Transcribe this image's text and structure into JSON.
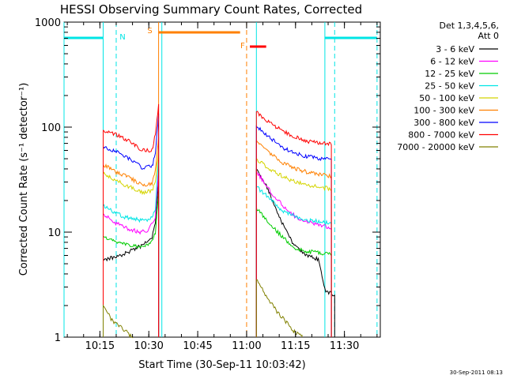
{
  "title": "HESSI Observing Summary Count Rates, Corrected",
  "footer_stamp": "30-Sep-2011 08:13",
  "chart_data": {
    "type": "line",
    "title": "HESSI Observing Summary Count Rates, Corrected",
    "xlabel": "Start Time (30-Sep-11 10:03:42)",
    "ylabel": "Corrected Count Rate (s⁻¹ detector⁻¹)",
    "y_scale": "log",
    "ylim": [
      1,
      1000
    ],
    "xlim": [
      "10:04",
      "11:41"
    ],
    "x_ticks": [
      "10:15",
      "10:30",
      "10:45",
      "11:00",
      "11:15",
      "11:30"
    ],
    "y_ticks": [
      "1",
      "10",
      "100",
      "1000"
    ],
    "legend_title": [
      "Det 1,3,4,5,6,",
      "Att 0"
    ],
    "legend_position": "right",
    "series": [
      {
        "name": "3 - 6 keV",
        "color": "#000000",
        "points": [
          [
            "10:16",
            5.5
          ],
          [
            "10:20",
            5.8
          ],
          [
            "10:24",
            6.5
          ],
          [
            "10:28",
            7.5
          ],
          [
            "10:31",
            9
          ],
          [
            "10:32",
            12
          ],
          [
            "10:33",
            30
          ],
          [
            "11:03",
            40
          ],
          [
            "11:06",
            28
          ],
          [
            "11:10",
            14
          ],
          [
            "11:14",
            8
          ],
          [
            "11:18",
            6
          ],
          [
            "11:22",
            5.5
          ],
          [
            "11:24",
            2.8
          ],
          [
            "11:27",
            2.5
          ]
        ]
      },
      {
        "name": "6 - 12 keV",
        "color": "#ff00ff",
        "points": [
          [
            "10:16",
            15
          ],
          [
            "10:19",
            12.5
          ],
          [
            "10:23",
            11
          ],
          [
            "10:27",
            10
          ],
          [
            "10:30",
            10.5
          ],
          [
            "10:32",
            14
          ],
          [
            "10:33",
            40
          ],
          [
            "11:03",
            38
          ],
          [
            "11:07",
            25
          ],
          [
            "11:11",
            18
          ],
          [
            "11:15",
            14
          ],
          [
            "11:19",
            12.5
          ],
          [
            "11:23",
            11.5
          ],
          [
            "11:26",
            11
          ]
        ]
      },
      {
        "name": "12 - 25 keV",
        "color": "#00cc00",
        "points": [
          [
            "10:16",
            9
          ],
          [
            "10:20",
            8
          ],
          [
            "10:24",
            7.5
          ],
          [
            "10:28",
            7.2
          ],
          [
            "10:31",
            8
          ],
          [
            "10:32",
            10
          ],
          [
            "10:33",
            25
          ],
          [
            "11:03",
            17
          ],
          [
            "11:07",
            12
          ],
          [
            "11:11",
            9
          ],
          [
            "11:15",
            7
          ],
          [
            "11:19",
            6.5
          ],
          [
            "11:23",
            6.3
          ],
          [
            "11:26",
            6.2
          ]
        ]
      },
      {
        "name": "25 - 50 keV",
        "color": "#00e5e5",
        "points": [
          [
            "10:16",
            18
          ],
          [
            "10:20",
            15
          ],
          [
            "10:24",
            13.5
          ],
          [
            "10:28",
            13
          ],
          [
            "10:31",
            13.5
          ],
          [
            "10:32",
            17
          ],
          [
            "10:33",
            50
          ],
          [
            "11:03",
            27
          ],
          [
            "11:07",
            21
          ],
          [
            "11:11",
            16
          ],
          [
            "11:15",
            14
          ],
          [
            "11:19",
            13
          ],
          [
            "11:23",
            12.5
          ],
          [
            "11:26",
            12
          ]
        ]
      },
      {
        "name": "50 - 100 keV",
        "color": "#d4d400",
        "points": [
          [
            "10:16",
            36
          ],
          [
            "10:20",
            31
          ],
          [
            "10:24",
            27
          ],
          [
            "10:28",
            24
          ],
          [
            "10:31",
            24.5
          ],
          [
            "10:32",
            30
          ],
          [
            "10:33",
            60
          ],
          [
            "11:03",
            50
          ],
          [
            "11:07",
            40
          ],
          [
            "11:11",
            34
          ],
          [
            "11:15",
            30
          ],
          [
            "11:19",
            28
          ],
          [
            "11:23",
            26.5
          ],
          [
            "11:26",
            26
          ]
        ]
      },
      {
        "name": "100 - 300 keV",
        "color": "#ff8000",
        "points": [
          [
            "10:16",
            44
          ],
          [
            "10:20",
            37
          ],
          [
            "10:24",
            33
          ],
          [
            "10:28",
            28
          ],
          [
            "10:31",
            29
          ],
          [
            "10:32",
            38
          ],
          [
            "10:33",
            80
          ],
          [
            "11:03",
            75
          ],
          [
            "11:07",
            57
          ],
          [
            "11:11",
            46
          ],
          [
            "11:15",
            40
          ],
          [
            "11:19",
            37
          ],
          [
            "11:23",
            35
          ],
          [
            "11:26",
            34
          ]
        ]
      },
      {
        "name": "300 - 800 keV",
        "color": "#0000ff",
        "points": [
          [
            "10:16",
            65
          ],
          [
            "10:20",
            58
          ],
          [
            "10:24",
            50
          ],
          [
            "10:28",
            41
          ],
          [
            "10:31",
            42
          ],
          [
            "10:32",
            56
          ],
          [
            "10:33",
            130
          ],
          [
            "11:03",
            102
          ],
          [
            "11:07",
            80
          ],
          [
            "11:11",
            64
          ],
          [
            "11:15",
            56
          ],
          [
            "11:19",
            52
          ],
          [
            "11:23",
            50
          ],
          [
            "11:26",
            49
          ]
        ]
      },
      {
        "name": "800 - 7000 keV",
        "color": "#ff0000",
        "points": [
          [
            "10:16",
            93
          ],
          [
            "10:20",
            85
          ],
          [
            "10:24",
            74
          ],
          [
            "10:28",
            60
          ],
          [
            "10:31",
            60
          ],
          [
            "10:32",
            85
          ],
          [
            "10:33",
            160
          ],
          [
            "11:03",
            140
          ],
          [
            "11:07",
            110
          ],
          [
            "11:11",
            92
          ],
          [
            "11:15",
            80
          ],
          [
            "11:19",
            73
          ],
          [
            "11:23",
            70
          ],
          [
            "11:26",
            69
          ]
        ]
      },
      {
        "name": "7000 - 20000 keV",
        "color": "#808000",
        "points": [
          [
            "10:16",
            2
          ],
          [
            "10:19",
            1.4
          ],
          [
            "10:22",
            1.2
          ],
          [
            "10:25",
            1.0
          ],
          [
            "11:03",
            3.5
          ],
          [
            "11:06",
            2.5
          ],
          [
            "11:09",
            1.8
          ],
          [
            "11:12",
            1.4
          ],
          [
            "11:15",
            1.1
          ],
          [
            "11:17",
            1.0
          ]
        ]
      }
    ],
    "orbit_bars": [
      {
        "label": "",
        "color": "#00e5e5",
        "start": "10:04",
        "end": "10:16"
      },
      {
        "label": "N",
        "color": "#00e5e5",
        "start": "10:20",
        "end": "10:20"
      },
      {
        "label": "S",
        "color": "#ff8000",
        "start": "10:33",
        "end": "10:58"
      },
      {
        "label": "F",
        "color": "#ff8000",
        "start": "11:00",
        "end": "11:00"
      },
      {
        "label": "",
        "color": "#ff0000",
        "start": "11:01",
        "end": "11:06"
      },
      {
        "label": "",
        "color": "#00e5e5",
        "start": "11:24",
        "end": "11:40"
      }
    ],
    "vertical_markers": [
      {
        "time": "10:04",
        "color": "#00e5e5",
        "style": "solid"
      },
      {
        "time": "10:16",
        "color": "#00e5e5",
        "style": "solid"
      },
      {
        "time": "10:20",
        "color": "#00e5e5",
        "style": "dashed"
      },
      {
        "time": "10:33",
        "color": "#ff8000",
        "style": "solid"
      },
      {
        "time": "10:34",
        "color": "#00e5e5",
        "style": "solid"
      },
      {
        "time": "11:00",
        "color": "#ff8000",
        "style": "dashed"
      },
      {
        "time": "11:03",
        "color": "#00e5e5",
        "style": "solid"
      },
      {
        "time": "11:24",
        "color": "#00e5e5",
        "style": "solid"
      },
      {
        "time": "11:27",
        "color": "#00e5e5",
        "style": "dashed"
      },
      {
        "time": "11:40",
        "color": "#00e5e5",
        "style": "dashed"
      }
    ]
  }
}
